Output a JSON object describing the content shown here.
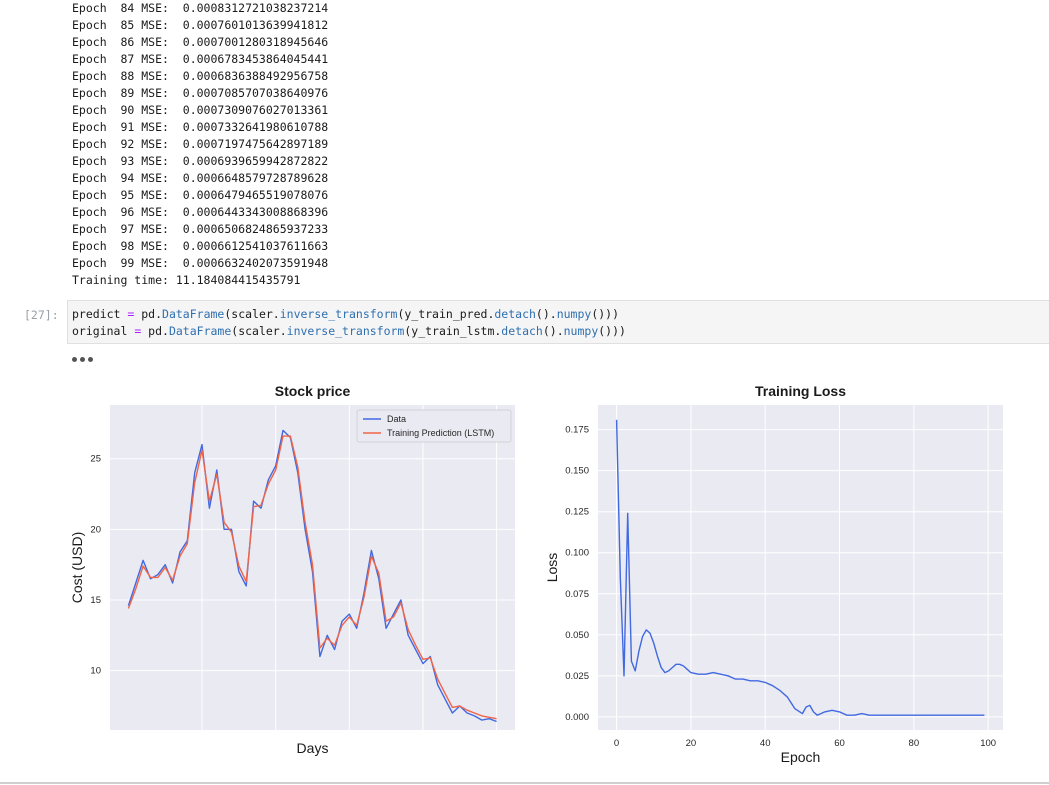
{
  "output": {
    "lines": [
      "Epoch  84 MSE:  0.0008312721038237214",
      "Epoch  85 MSE:  0.0007601013639941812",
      "Epoch  86 MSE:  0.0007001280318945646",
      "Epoch  87 MSE:  0.0006783453864045441",
      "Epoch  88 MSE:  0.0006836388492956758",
      "Epoch  89 MSE:  0.0007085707038640976",
      "Epoch  90 MSE:  0.0007309076027013361",
      "Epoch  91 MSE:  0.0007332641980610788",
      "Epoch  92 MSE:  0.0007197475642897189",
      "Epoch  93 MSE:  0.0006939659942872822",
      "Epoch  94 MSE:  0.0006648579728789628",
      "Epoch  95 MSE:  0.0006479465519078076",
      "Epoch  96 MSE:  0.0006443343008868396",
      "Epoch  97 MSE:  0.0006506824865937233",
      "Epoch  98 MSE:  0.0006612541037611663",
      "Epoch  99 MSE:  0.0006632402073591948",
      "Training time: 11.184084415435791"
    ]
  },
  "cell": {
    "prompt": "[27]:",
    "line1": {
      "var": "predict",
      "op": " = ",
      "pd": "pd.",
      "cls": "DataFrame",
      "p1": "(scaler.",
      "m1": "inverse_transform",
      "p2": "(y_train_pred.",
      "m2": "detach",
      "p3": "().",
      "m3": "numpy",
      "p4": "()))"
    },
    "line2": {
      "var": "original",
      "op": " = ",
      "pd": "pd.",
      "cls": "DataFrame",
      "p1": "(scaler.",
      "m1": "inverse_transform",
      "p2": "(y_train_lstm.",
      "m2": "detach",
      "p3": "().",
      "m3": "numpy",
      "p4": "()))"
    }
  },
  "colors": {
    "data": "#4169e1",
    "prediction": "#f06449",
    "plot_bg": "#eaeaf2",
    "grid": "#ffffff"
  },
  "chart_data": [
    {
      "type": "line",
      "title": "Stock price",
      "xlabel": "Days",
      "ylabel": "Cost (USD)",
      "yticks": [
        "10",
        "15",
        "20",
        "25"
      ],
      "ylim": [
        5.8,
        28.8
      ],
      "xlim": [
        -5,
        105
      ],
      "legend": "top-right",
      "series": [
        {
          "name": "Data",
          "color": "#4169e1",
          "x": [
            0,
            2,
            4,
            6,
            8,
            10,
            12,
            14,
            16,
            18,
            20,
            22,
            24,
            26,
            28,
            30,
            32,
            34,
            36,
            38,
            40,
            42,
            44,
            46,
            48,
            50,
            52,
            54,
            56,
            58,
            60,
            62,
            64,
            66,
            68,
            70,
            72,
            74,
            76,
            78,
            80,
            82,
            84,
            86,
            88,
            90,
            92,
            94,
            96,
            98,
            100
          ],
          "values": [
            14.6,
            16.2,
            17.8,
            16.5,
            16.8,
            17.5,
            16.2,
            18.4,
            19.2,
            24.0,
            26.0,
            21.5,
            24.2,
            20.0,
            20.0,
            17.0,
            16.0,
            22.0,
            21.5,
            23.5,
            24.5,
            27.0,
            26.5,
            24.0,
            20.0,
            17.0,
            11.0,
            12.5,
            11.5,
            13.5,
            14.0,
            13.0,
            15.5,
            18.5,
            16.5,
            13.0,
            14.0,
            15.0,
            12.5,
            11.5,
            10.5,
            11.0,
            9.0,
            8.0,
            7.0,
            7.5,
            7.0,
            6.8,
            6.5,
            6.6,
            6.4
          ]
        },
        {
          "name": "Training Prediction (LSTM)",
          "color": "#f06449",
          "x": [
            0,
            2,
            4,
            6,
            8,
            10,
            12,
            14,
            16,
            18,
            20,
            22,
            24,
            26,
            28,
            30,
            32,
            34,
            36,
            38,
            40,
            42,
            44,
            46,
            48,
            50,
            52,
            54,
            56,
            58,
            60,
            62,
            64,
            66,
            68,
            70,
            72,
            74,
            76,
            78,
            80,
            82,
            84,
            86,
            88,
            90,
            92,
            94,
            96,
            98,
            100
          ],
          "values": [
            14.4,
            15.8,
            17.4,
            16.6,
            16.6,
            17.3,
            16.4,
            18.1,
            19.0,
            23.3,
            25.6,
            22.0,
            23.9,
            20.5,
            19.8,
            17.4,
            16.3,
            21.6,
            21.7,
            23.2,
            24.2,
            26.6,
            26.6,
            24.4,
            20.5,
            17.5,
            11.6,
            12.3,
            11.8,
            13.2,
            13.8,
            13.2,
            15.2,
            18.1,
            16.9,
            13.5,
            13.8,
            14.8,
            12.9,
            11.8,
            10.8,
            10.9,
            9.4,
            8.4,
            7.4,
            7.5,
            7.2,
            7.0,
            6.8,
            6.7,
            6.6
          ]
        }
      ]
    },
    {
      "type": "line",
      "title": "Training Loss",
      "xlabel": "Epoch",
      "ylabel": "Loss",
      "xticks": [
        "0",
        "20",
        "40",
        "60",
        "80",
        "100"
      ],
      "yticks": [
        "0.000",
        "0.025",
        "0.050",
        "0.075",
        "0.100",
        "0.125",
        "0.150",
        "0.175"
      ],
      "xlim": [
        -5,
        104
      ],
      "ylim": [
        -0.008,
        0.19
      ],
      "series": [
        {
          "name": "",
          "color": "#4169e1",
          "x": [
            0,
            1,
            2,
            3,
            4,
            5,
            6,
            7,
            8,
            9,
            10,
            11,
            12,
            13,
            14,
            15,
            16,
            17,
            18,
            19,
            20,
            22,
            24,
            26,
            28,
            30,
            32,
            34,
            36,
            38,
            40,
            42,
            44,
            46,
            48,
            50,
            51,
            52,
            53,
            54,
            55,
            56,
            58,
            60,
            62,
            64,
            66,
            68,
            70,
            75,
            80,
            85,
            90,
            95,
            99
          ],
          "values": [
            0.181,
            0.085,
            0.025,
            0.124,
            0.034,
            0.028,
            0.04,
            0.049,
            0.053,
            0.051,
            0.045,
            0.037,
            0.03,
            0.027,
            0.028,
            0.03,
            0.032,
            0.032,
            0.031,
            0.029,
            0.027,
            0.026,
            0.026,
            0.027,
            0.026,
            0.025,
            0.023,
            0.023,
            0.022,
            0.022,
            0.021,
            0.019,
            0.016,
            0.012,
            0.005,
            0.002,
            0.006,
            0.007,
            0.003,
            0.001,
            0.002,
            0.003,
            0.004,
            0.003,
            0.001,
            0.001,
            0.002,
            0.001,
            0.001,
            0.001,
            0.001,
            0.001,
            0.001,
            0.001,
            0.001
          ]
        }
      ]
    }
  ]
}
